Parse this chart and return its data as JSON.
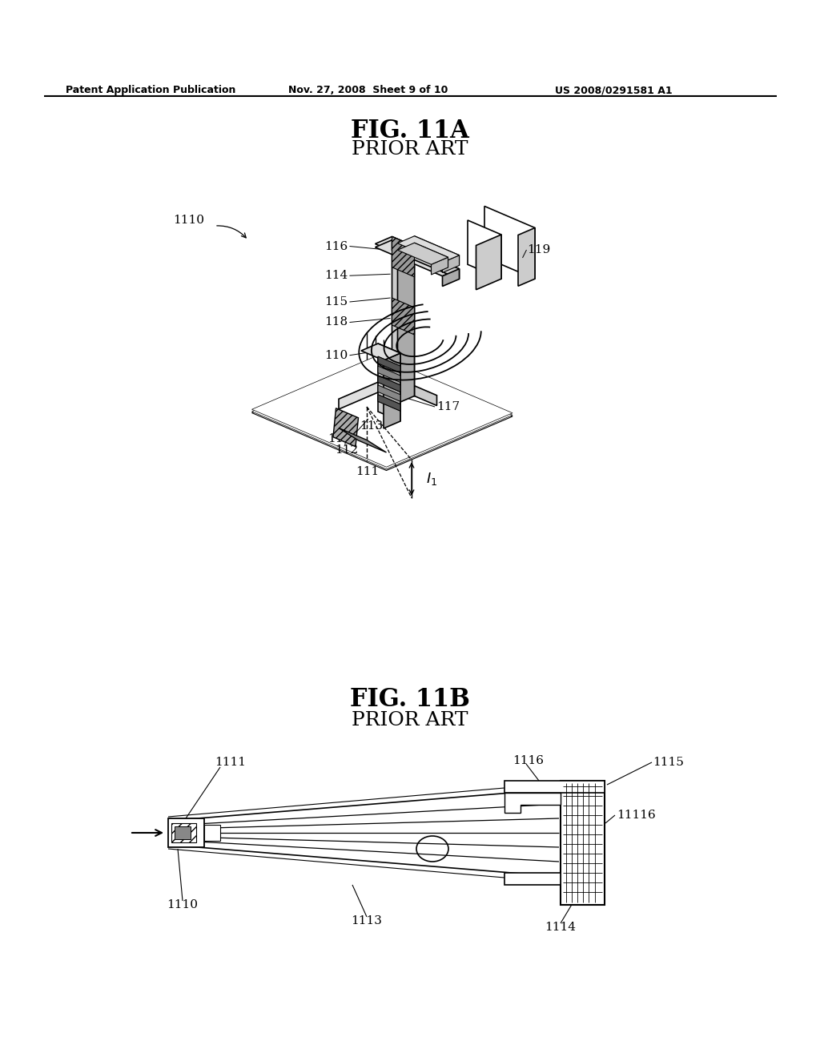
{
  "bg_color": "#ffffff",
  "header_text": "Patent Application Publication",
  "header_date": "Nov. 27, 2008  Sheet 9 of 10",
  "header_patent": "US 2008/0291581 A1",
  "fig11a_title": "FIG. 11A",
  "fig11a_subtitle": "PRIOR ART",
  "fig11b_title": "FIG. 11B",
  "fig11b_subtitle": "PRIOR ART",
  "lc": "#000000",
  "gray_light": "#d0d0d0",
  "gray_med": "#aaaaaa",
  "gray_dark": "#777777",
  "gray_hatch": "#999999",
  "white": "#ffffff"
}
